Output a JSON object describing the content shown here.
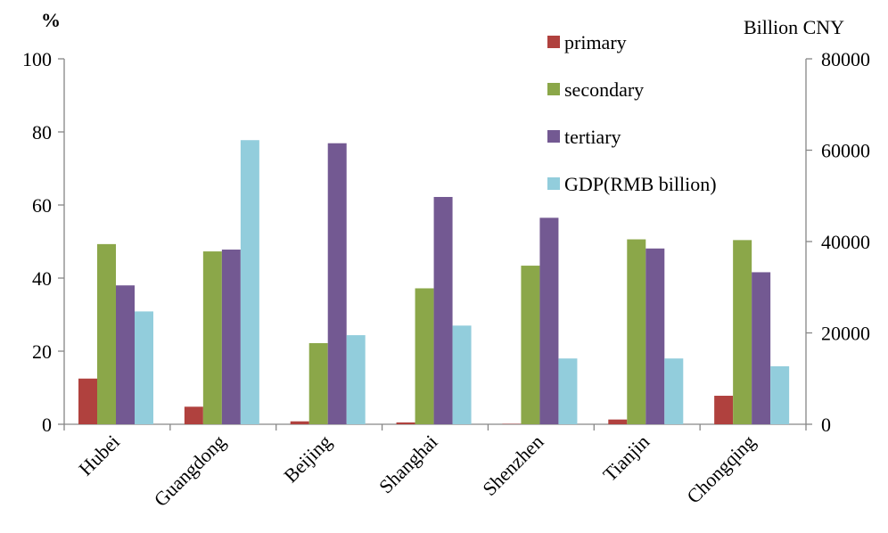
{
  "chart_data": {
    "type": "bar",
    "categories": [
      "Hubei",
      "Guangdong",
      "Beijing",
      "Shanghai",
      "Shenzhen",
      "Tianjin",
      "Chongqing"
    ],
    "series": [
      {
        "name": "primary",
        "axis": "left",
        "color": "#B0413E",
        "values": [
          12.5,
          4.8,
          0.8,
          0.5,
          0.1,
          1.3,
          7.8
        ]
      },
      {
        "name": "secondary",
        "axis": "left",
        "color": "#8BA749",
        "values": [
          49.3,
          47.3,
          22.2,
          37.2,
          43.4,
          50.6,
          50.4
        ]
      },
      {
        "name": "tertiary",
        "axis": "left",
        "color": "#735992",
        "values": [
          38.0,
          47.8,
          76.9,
          62.2,
          56.5,
          48.1,
          41.6
        ]
      },
      {
        "name": "GDP(RMB billion)",
        "axis": "right",
        "color": "#92CDDC",
        "values": [
          24700,
          62200,
          19500,
          21600,
          14400,
          14400,
          12700
        ]
      }
    ],
    "ylabel": "%",
    "ylabel_right": "Billion CNY",
    "ylim": [
      0,
      100
    ],
    "ylim_right": [
      0,
      80000
    ],
    "yticks": [
      "0",
      "20",
      "40",
      "60",
      "80",
      "100"
    ],
    "yticks_right": [
      "0",
      "20000",
      "40000",
      "60000",
      "80000"
    ],
    "legend_position": "top-right",
    "grid": false
  }
}
